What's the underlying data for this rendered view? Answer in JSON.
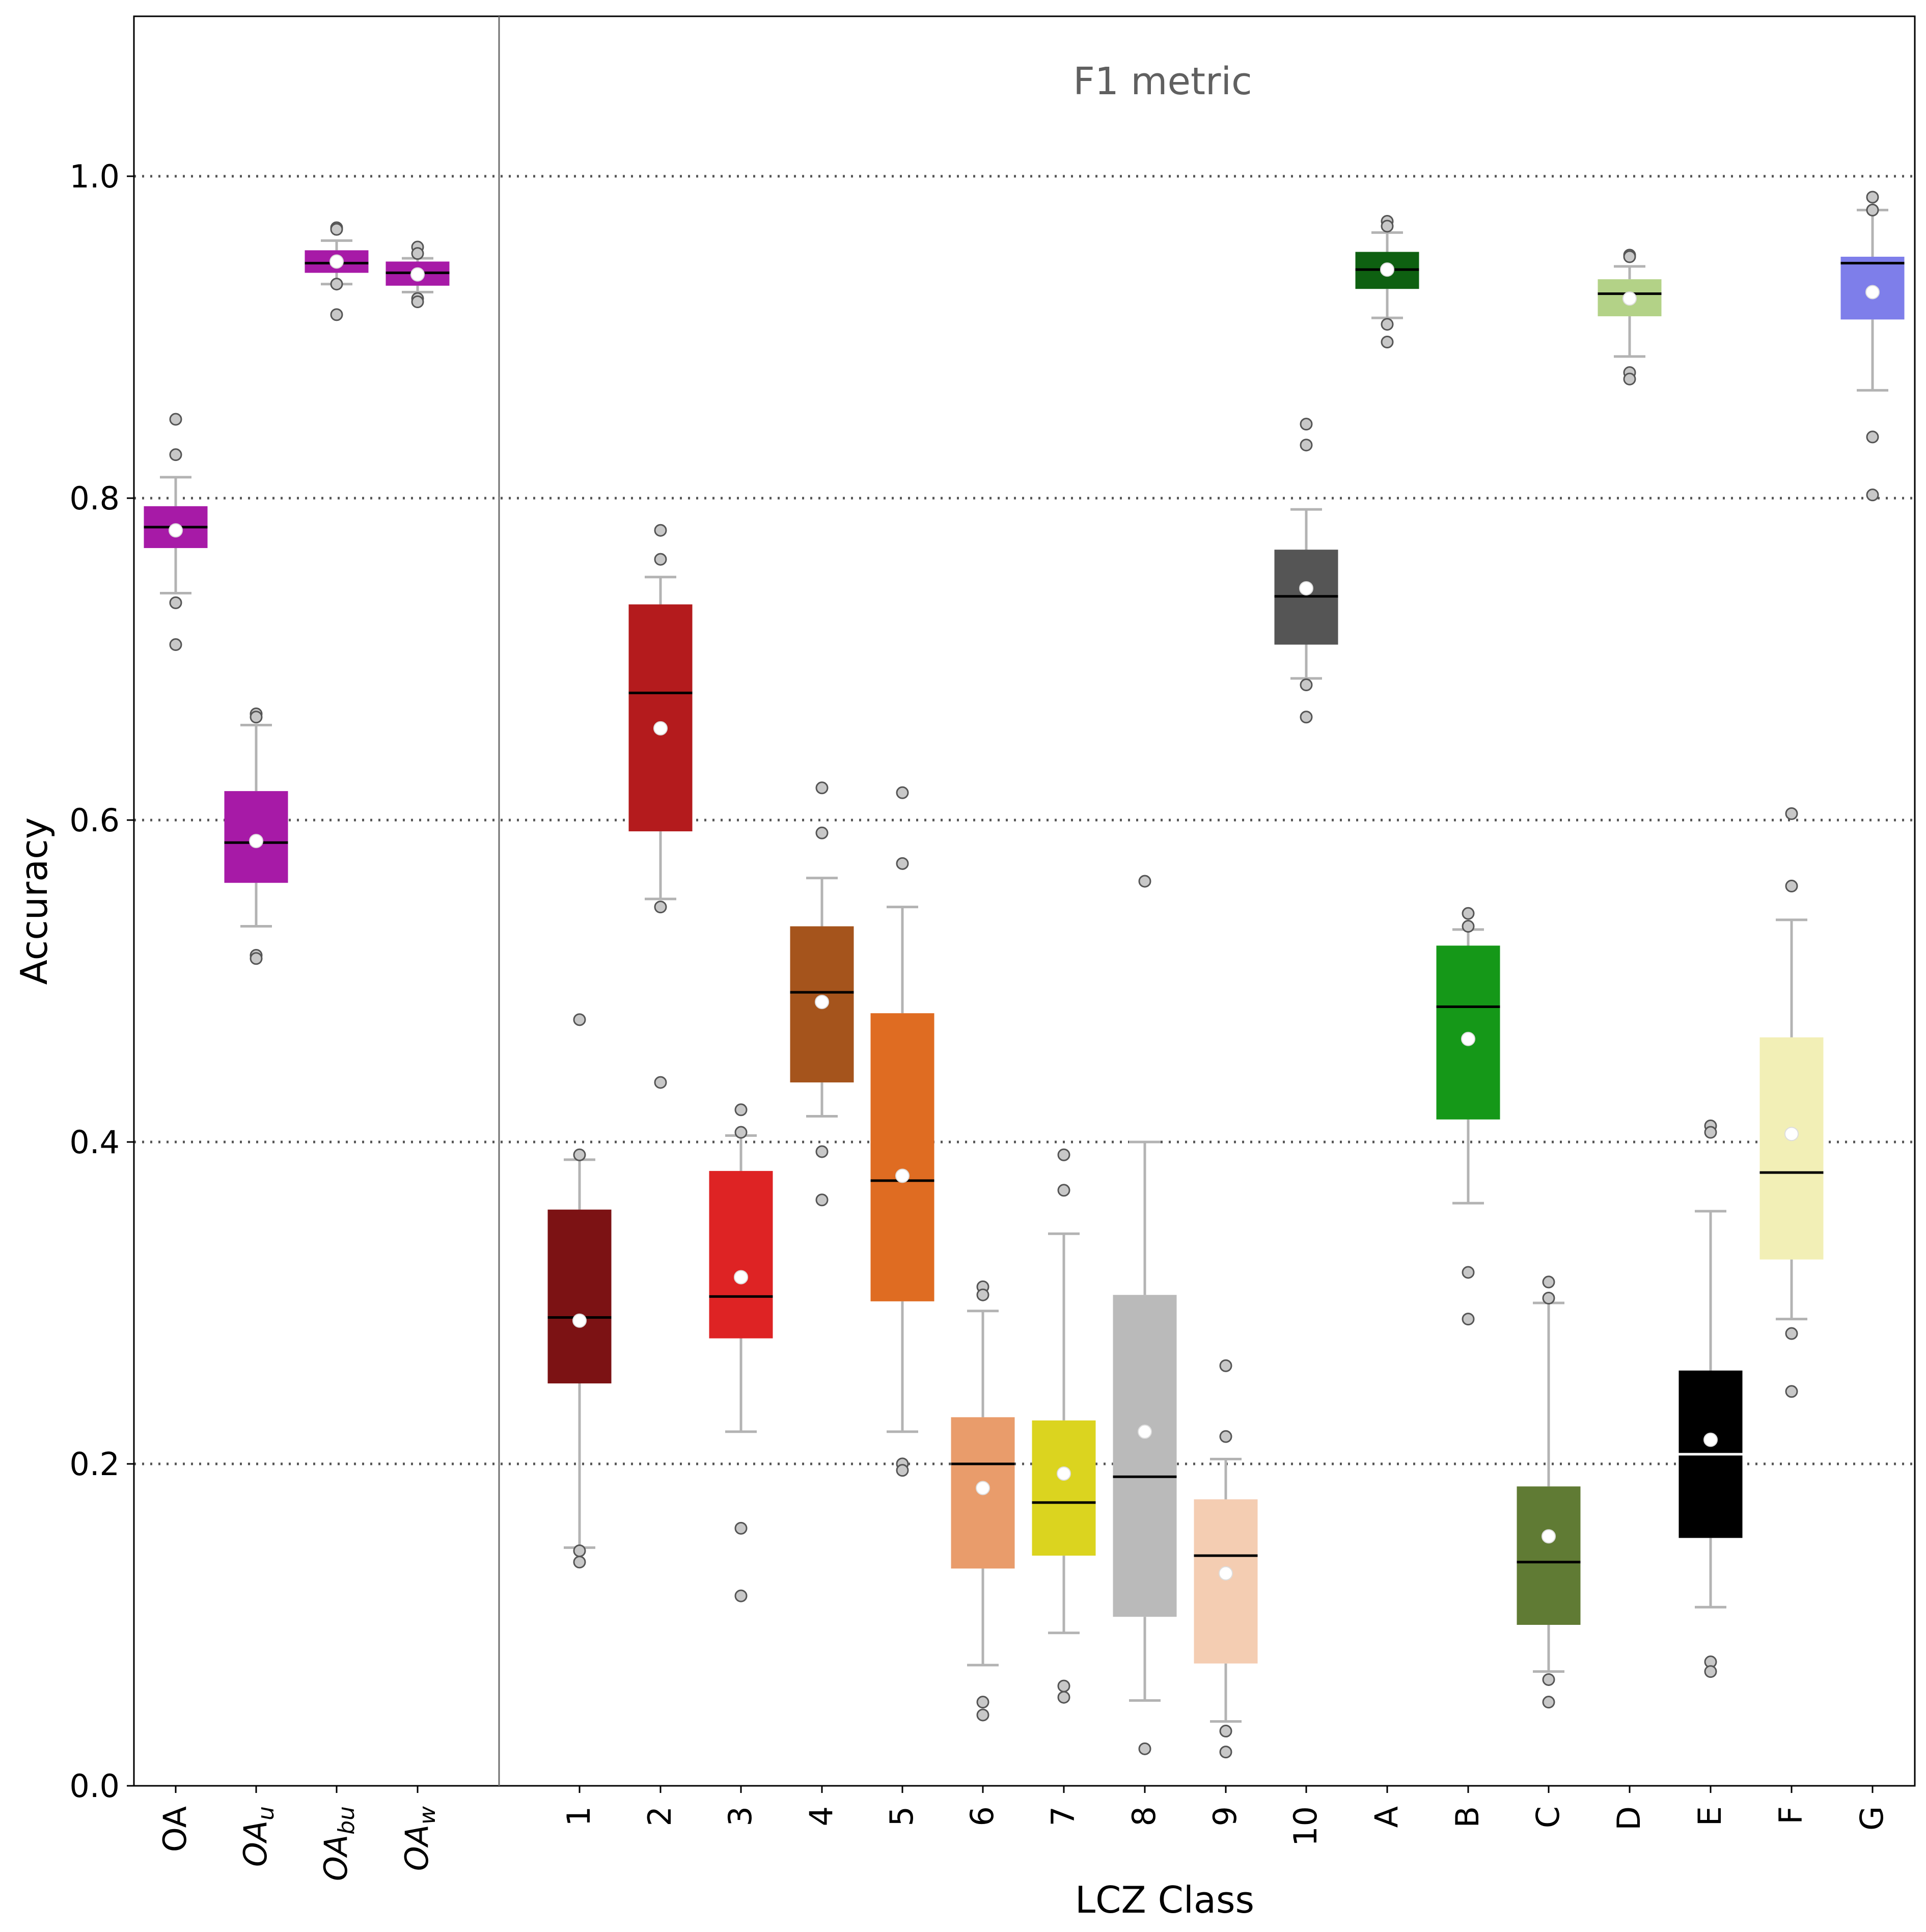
{
  "chart_data": {
    "type": "box",
    "annotation": "F1 metric",
    "xlabel": "LCZ Class",
    "ylabel": "Accuracy",
    "ylim": [
      0.0,
      1.1
    ],
    "yticks": [
      "0.0",
      "0.2",
      "0.4",
      "0.6",
      "0.8",
      "1.0"
    ],
    "grid": "horizontal dotted at 0.2, 0.4, 0.6, 0.8, 1.0",
    "groups": [
      {
        "label": "OA",
        "sub": "",
        "color": "#a71aa7",
        "q1": 0.769,
        "median": 0.782,
        "q3": 0.795,
        "mean": 0.78,
        "whislo": 0.741,
        "whishi": 0.813,
        "fliers": [
          0.849,
          0.827,
          0.735,
          0.709
        ]
      },
      {
        "label": "OA",
        "sub": "u",
        "color": "#a71aa7",
        "q1": 0.561,
        "median": 0.586,
        "q3": 0.618,
        "mean": 0.587,
        "whislo": 0.534,
        "whishi": 0.659,
        "fliers": [
          0.666,
          0.664,
          0.516,
          0.514
        ]
      },
      {
        "label": "OA",
        "sub": "bu",
        "color": "#a71aa7",
        "q1": 0.94,
        "median": 0.946,
        "q3": 0.954,
        "mean": 0.947,
        "whislo": 0.933,
        "whishi": 0.96,
        "fliers": [
          0.968,
          0.967,
          0.933,
          0.914
        ]
      },
      {
        "label": "OA",
        "sub": "w",
        "color": "#a71aa7",
        "q1": 0.932,
        "median": 0.94,
        "q3": 0.947,
        "mean": 0.939,
        "whislo": 0.928,
        "whishi": 0.949,
        "fliers": [
          0.956,
          0.952,
          0.924,
          0.922
        ]
      },
      {
        "label": "1",
        "sub": "",
        "color": "#7c1214",
        "q1": 0.25,
        "median": 0.291,
        "q3": 0.358,
        "mean": 0.289,
        "whislo": 0.148,
        "whishi": 0.389,
        "fliers": [
          0.476,
          0.392,
          0.146,
          0.139
        ]
      },
      {
        "label": "2",
        "sub": "",
        "color": "#b41b1d",
        "q1": 0.593,
        "median": 0.679,
        "q3": 0.734,
        "mean": 0.657,
        "whislo": 0.551,
        "whishi": 0.751,
        "fliers": [
          0.78,
          0.762,
          0.546,
          0.437
        ]
      },
      {
        "label": "3",
        "sub": "",
        "color": "#de2324",
        "q1": 0.278,
        "median": 0.304,
        "q3": 0.382,
        "mean": 0.316,
        "whislo": 0.22,
        "whishi": 0.404,
        "fliers": [
          0.42,
          0.406,
          0.16,
          0.118
        ]
      },
      {
        "label": "4",
        "sub": "",
        "color": "#a5541c",
        "q1": 0.437,
        "median": 0.493,
        "q3": 0.534,
        "mean": 0.487,
        "whislo": 0.416,
        "whishi": 0.564,
        "fliers": [
          0.62,
          0.592,
          0.394,
          0.364
        ]
      },
      {
        "label": "5",
        "sub": "",
        "color": "#df6c22",
        "q1": 0.301,
        "median": 0.376,
        "q3": 0.48,
        "mean": 0.379,
        "whislo": 0.22,
        "whishi": 0.546,
        "fliers": [
          0.617,
          0.573,
          0.2,
          0.196
        ]
      },
      {
        "label": "6",
        "sub": "",
        "color": "#e99c6b",
        "q1": 0.135,
        "median": 0.2,
        "q3": 0.229,
        "mean": 0.185,
        "whislo": 0.075,
        "whishi": 0.295,
        "fliers": [
          0.31,
          0.305,
          0.052,
          0.044
        ]
      },
      {
        "label": "7",
        "sub": "",
        "color": "#dbd41f",
        "q1": 0.143,
        "median": 0.176,
        "q3": 0.227,
        "mean": 0.194,
        "whislo": 0.095,
        "whishi": 0.343,
        "fliers": [
          0.392,
          0.37,
          0.062,
          0.055
        ]
      },
      {
        "label": "8",
        "sub": "",
        "color": "#bababa",
        "q1": 0.105,
        "median": 0.192,
        "q3": 0.305,
        "mean": 0.22,
        "whislo": 0.053,
        "whishi": 0.4,
        "fliers": [
          0.562,
          0.023
        ]
      },
      {
        "label": "9",
        "sub": "",
        "color": "#f4cdb2",
        "q1": 0.076,
        "median": 0.143,
        "q3": 0.178,
        "mean": 0.132,
        "whislo": 0.04,
        "whishi": 0.203,
        "fliers": [
          0.261,
          0.217,
          0.034,
          0.021
        ]
      },
      {
        "label": "10",
        "sub": "",
        "color": "#555555",
        "q1": 0.709,
        "median": 0.739,
        "q3": 0.768,
        "mean": 0.744,
        "whislo": 0.688,
        "whishi": 0.793,
        "fliers": [
          0.846,
          0.833,
          0.684,
          0.664
        ]
      },
      {
        "label": "A",
        "sub": "",
        "color": "#0e6011",
        "q1": 0.93,
        "median": 0.942,
        "q3": 0.953,
        "mean": 0.942,
        "whislo": 0.912,
        "whishi": 0.965,
        "fliers": [
          0.972,
          0.969,
          0.908,
          0.897
        ]
      },
      {
        "label": "B",
        "sub": "",
        "color": "#159818",
        "q1": 0.414,
        "median": 0.484,
        "q3": 0.522,
        "mean": 0.464,
        "whislo": 0.362,
        "whishi": 0.532,
        "fliers": [
          0.542,
          0.534,
          0.319,
          0.29
        ]
      },
      {
        "label": "C",
        "sub": "",
        "color": "#607b34",
        "q1": 0.1,
        "median": 0.139,
        "q3": 0.186,
        "mean": 0.155,
        "whislo": 0.071,
        "whishi": 0.3,
        "fliers": [
          0.313,
          0.303,
          0.066,
          0.052
        ]
      },
      {
        "label": "D",
        "sub": "",
        "color": "#b3d287",
        "q1": 0.913,
        "median": 0.927,
        "q3": 0.936,
        "mean": 0.924,
        "whislo": 0.888,
        "whishi": 0.944,
        "fliers": [
          0.951,
          0.95,
          0.878,
          0.874
        ]
      },
      {
        "label": "E",
        "sub": "",
        "color": "#000000",
        "q1": 0.154,
        "median": 0.206,
        "q3": 0.258,
        "mean": 0.215,
        "whislo": 0.111,
        "whishi": 0.357,
        "fliers": [
          0.41,
          0.406,
          0.077,
          0.071
        ]
      },
      {
        "label": "F",
        "sub": "",
        "color": "#f2efb6",
        "q1": 0.327,
        "median": 0.381,
        "q3": 0.465,
        "mean": 0.405,
        "whislo": 0.29,
        "whishi": 0.538,
        "fliers": [
          0.604,
          0.559,
          0.281,
          0.245
        ]
      },
      {
        "label": "G",
        "sub": "",
        "color": "#7e7eea",
        "q1": 0.911,
        "median": 0.946,
        "q3": 0.95,
        "mean": 0.928,
        "whislo": 0.867,
        "whishi": 0.979,
        "fliers": [
          0.987,
          0.979,
          0.838,
          0.802
        ]
      }
    ]
  }
}
